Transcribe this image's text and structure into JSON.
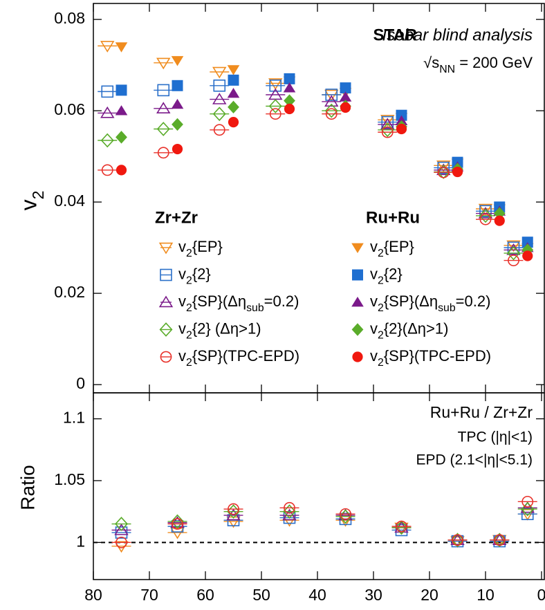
{
  "chart_data": [
    {
      "type": "scatter",
      "y_label": "v2",
      "annotations": [
        "STAR",
        "Isobar blind analysis",
        "√sNN = 200 GeV"
      ],
      "legend_titles": [
        "Zr+Zr",
        "Ru+Ru"
      ],
      "xlim": [
        80,
        0
      ],
      "xticks": [
        80,
        70,
        60,
        50,
        40,
        30,
        20,
        10,
        0
      ],
      "ylim": [
        -0.0018,
        0.0835
      ],
      "yticks": [
        0,
        0.02,
        0.04,
        0.06,
        0.08
      ],
      "series": [
        {
          "name": "v2{EP}",
          "color": "#f08c1e",
          "marker": "triangle-down",
          "filled": false,
          "x": [
            77.5,
            67.5,
            57.5,
            47.5,
            37.5,
            27.5,
            17.5,
            10,
            5
          ],
          "values": [
            0.0742,
            0.0705,
            0.0685,
            0.066,
            0.0635,
            0.058,
            0.048,
            0.0385,
            0.0305
          ]
        },
        {
          "name": "v2{2}",
          "color": "#2a6fc9",
          "marker": "square",
          "filled": false,
          "x": [
            77.5,
            67.5,
            57.5,
            47.5,
            37.5,
            27.5,
            17.5,
            10,
            5
          ],
          "values": [
            0.0642,
            0.0645,
            0.0655,
            0.0655,
            0.0635,
            0.0575,
            0.0475,
            0.038,
            0.03
          ]
        },
        {
          "name": "v2{SP}(Δηsub=0.2)",
          "color": "#7b1a8a",
          "marker": "triangle-up",
          "filled": false,
          "x": [
            77.5,
            67.5,
            57.5,
            47.5,
            37.5,
            27.5,
            17.5,
            10,
            5
          ],
          "values": [
            0.0595,
            0.0605,
            0.0625,
            0.0635,
            0.062,
            0.057,
            0.047,
            0.0375,
            0.0295
          ]
        },
        {
          "name": "v2{2} (Δη>1)",
          "color": "#5aac2a",
          "marker": "diamond",
          "filled": false,
          "x": [
            77.5,
            67.5,
            57.5,
            47.5,
            37.5,
            27.5,
            17.5,
            10,
            5
          ],
          "values": [
            0.0535,
            0.056,
            0.0593,
            0.061,
            0.06,
            0.0558,
            0.0466,
            0.037,
            0.0288
          ]
        },
        {
          "name": "v2{SP}(TPC-EPD)",
          "color": "#e8312a",
          "marker": "circle",
          "filled": false,
          "x": [
            77.5,
            67.5,
            57.5,
            47.5,
            37.5,
            27.5,
            17.5,
            10,
            5
          ],
          "values": [
            0.047,
            0.0508,
            0.0558,
            0.0593,
            0.0593,
            0.0553,
            0.0465,
            0.0362,
            0.0272
          ]
        },
        {
          "name": "v2{EP}",
          "color": "#f08c1e",
          "marker": "triangle-down",
          "filled": true,
          "x": [
            75,
            65,
            55,
            45,
            35,
            25,
            15,
            7.5,
            2.5
          ],
          "values": [
            0.074,
            0.071,
            0.069,
            0.0665,
            0.064,
            0.0585,
            0.0485,
            0.0385,
            0.03
          ]
        },
        {
          "name": "v2{2}",
          "color": "#1f6fd0",
          "marker": "square",
          "filled": true,
          "x": [
            75,
            65,
            55,
            45,
            35,
            25,
            15,
            7.5,
            2.5
          ],
          "values": [
            0.0645,
            0.0655,
            0.0667,
            0.067,
            0.065,
            0.059,
            0.0487,
            0.0389,
            0.0312
          ]
        },
        {
          "name": "v2{SP}(Δηsub=0.2)",
          "color": "#7b1a8a",
          "marker": "triangle-up",
          "filled": true,
          "x": [
            75,
            65,
            55,
            45,
            35,
            25,
            15,
            7.5,
            2.5
          ],
          "values": [
            0.06,
            0.0614,
            0.0638,
            0.065,
            0.063,
            0.0578,
            0.0477,
            0.038,
            0.03
          ]
        },
        {
          "name": "v2{2}(Δη>1)",
          "color": "#5aac2a",
          "marker": "diamond",
          "filled": true,
          "x": [
            75,
            65,
            55,
            45,
            35,
            25,
            15,
            7.5,
            2.5
          ],
          "values": [
            0.0542,
            0.057,
            0.0608,
            0.0622,
            0.061,
            0.0565,
            0.0472,
            0.0375,
            0.0295
          ]
        },
        {
          "name": "v2{SP}(TPC-EPD)",
          "color": "#f0180f",
          "marker": "circle",
          "filled": true,
          "x": [
            75,
            65,
            55,
            45,
            35,
            25,
            15,
            7.5,
            2.5
          ],
          "values": [
            0.047,
            0.0516,
            0.0575,
            0.0604,
            0.0607,
            0.056,
            0.0466,
            0.0359,
            0.0282
          ]
        }
      ]
    },
    {
      "type": "scatter",
      "y_label": "Ratio",
      "annotations": [
        "Ru+Ru / Zr+Zr",
        "TPC (|η|<1)",
        "EPD (2.1<|η|<5.1)"
      ],
      "xlim": [
        80,
        0
      ],
      "xticks": [
        80,
        70,
        60,
        50,
        40,
        30,
        20,
        10,
        0
      ],
      "ylim": [
        0.97,
        1.121
      ],
      "yticks": [
        1,
        1.05,
        1.1
      ],
      "reference_line": 1,
      "series": [
        {
          "color": "#f08c1e",
          "marker": "triangle-down",
          "filled": false,
          "x": [
            75,
            65,
            55,
            45,
            35,
            25,
            15,
            7.5,
            2.5
          ],
          "values": [
            0.997,
            1.008,
            1.017,
            1.018,
            1.018,
            1.012,
            1.001,
            1.002,
            1.023
          ]
        },
        {
          "color": "#2a6fc9",
          "marker": "square",
          "filled": false,
          "x": [
            75,
            65,
            55,
            45,
            35,
            25,
            15,
            7.5,
            2.5
          ],
          "values": [
            1.008,
            1.013,
            1.018,
            1.02,
            1.019,
            1.01,
            1.001,
            1.001,
            1.023
          ]
        },
        {
          "color": "#7b1a8a",
          "marker": "triangle-up",
          "filled": false,
          "x": [
            75,
            65,
            55,
            45,
            35,
            25,
            15,
            7.5,
            2.5
          ],
          "values": [
            1.01,
            1.016,
            1.022,
            1.022,
            1.022,
            1.012,
            1.002,
            1.002,
            1.028
          ]
        },
        {
          "color": "#5aac2a",
          "marker": "diamond",
          "filled": false,
          "x": [
            75,
            65,
            55,
            45,
            35,
            25,
            15,
            7.5,
            2.5
          ],
          "values": [
            1.015,
            1.017,
            1.025,
            1.025,
            1.021,
            1.012,
            1.002,
            1.002,
            1.027
          ]
        },
        {
          "color": "#e8312a",
          "marker": "circle",
          "filled": false,
          "x": [
            75,
            65,
            55,
            45,
            35,
            25,
            15,
            7.5,
            2.5
          ],
          "values": [
            1.0,
            1.015,
            1.027,
            1.028,
            1.023,
            1.013,
            1.002,
            1.002,
            1.033
          ]
        }
      ]
    }
  ]
}
